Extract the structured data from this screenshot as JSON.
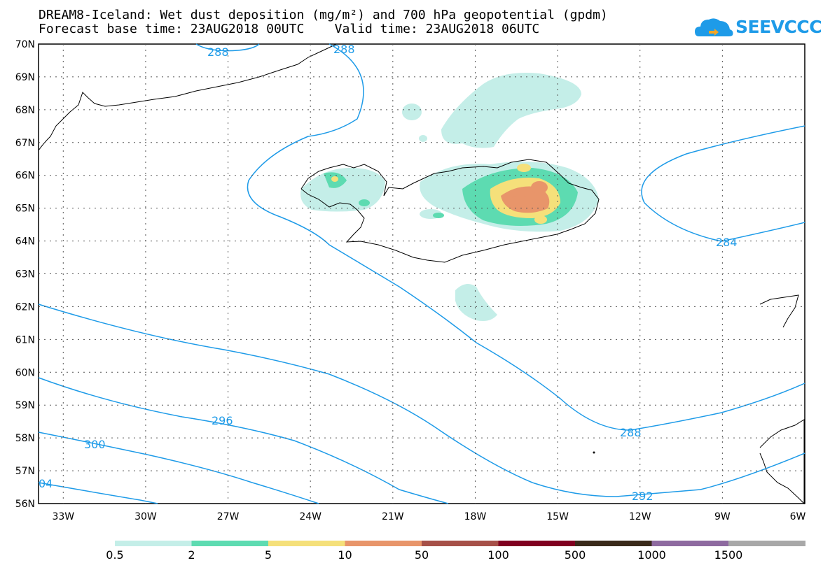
{
  "header": {
    "title_line1": "DREAM8-Iceland: Wet dust deposition (mg/m²) and 700 hPa geopotential (gpdm)",
    "title_line2": "Forecast base time: 23AUG2018 00UTC    Valid time: 23AUG2018 06UTC",
    "logo_text": "SEEVCCC",
    "logo_icon": "cloud-icon"
  },
  "map": {
    "lat_labels": [
      "70N",
      "69N",
      "68N",
      "67N",
      "66N",
      "65N",
      "64N",
      "63N",
      "62N",
      "61N",
      "60N",
      "59N",
      "58N",
      "57N",
      "56N"
    ],
    "lon_labels": [
      "33W",
      "30W",
      "27W",
      "24W",
      "21W",
      "18W",
      "15W",
      "12W",
      "9W",
      "6W"
    ],
    "contour_labels": [
      "288",
      "288",
      "284",
      "296",
      "300",
      "288",
      "292",
      "04"
    ],
    "colors": {
      "contour": "#1e9be8",
      "grid": "#555555",
      "coast": "#000000"
    }
  },
  "legend": {
    "labels": [
      "0.5",
      "2",
      "5",
      "10",
      "50",
      "100",
      "500",
      "1000",
      "1500"
    ],
    "colors": [
      "#c4eee8",
      "#5ddbb1",
      "#f5e07a",
      "#e8956a",
      "#a65048",
      "#800020",
      "#3a2a1a",
      "#8e6aa0",
      "#a8a8a8"
    ]
  }
}
